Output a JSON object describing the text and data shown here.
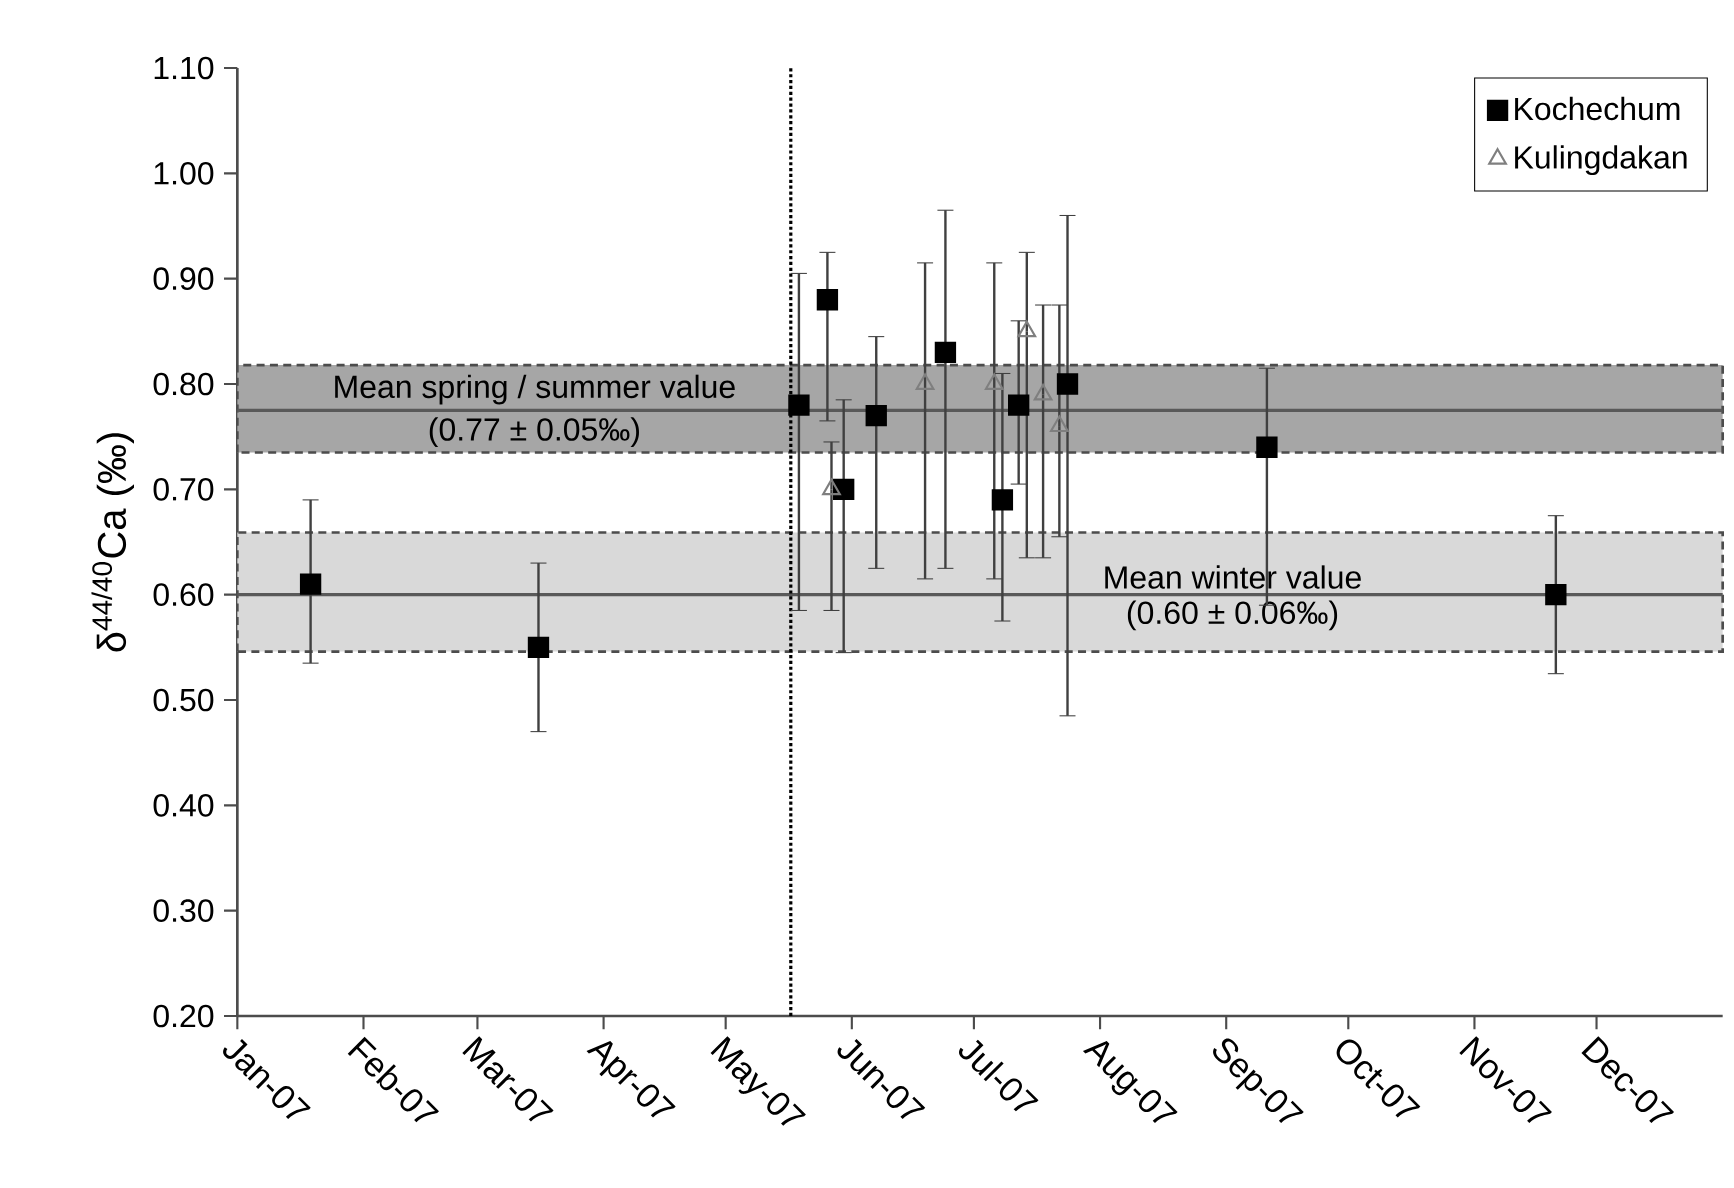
{
  "chart_data": {
    "type": "scatter",
    "ylabel": "δ$^{44/40}$Ca (‰)",
    "xlim": [
      "2007-01-01",
      "2008-01-01"
    ],
    "xticks": [
      {
        "value": "2007-01-01",
        "label": "Jan-07"
      },
      {
        "value": "2007-02-01",
        "label": "Feb-07"
      },
      {
        "value": "2007-03-01",
        "label": "Mar-07"
      },
      {
        "value": "2007-04-01",
        "label": "Apr-07"
      },
      {
        "value": "2007-05-01",
        "label": "May-07"
      },
      {
        "value": "2007-06-01",
        "label": "Jun-07"
      },
      {
        "value": "2007-07-01",
        "label": "Jul-07"
      },
      {
        "value": "2007-08-01",
        "label": "Aug-07"
      },
      {
        "value": "2007-09-01",
        "label": "Sep-07"
      },
      {
        "value": "2007-10-01",
        "label": "Oct-07"
      },
      {
        "value": "2007-11-01",
        "label": "Nov-07"
      },
      {
        "value": "2007-12-01",
        "label": "Dec-07"
      }
    ],
    "ylim": [
      0.2,
      1.1
    ],
    "yticks": [
      {
        "value": 0.2,
        "label": "0.20"
      },
      {
        "value": 0.3,
        "label": "0.30"
      },
      {
        "value": 0.4,
        "label": "0.40"
      },
      {
        "value": 0.5,
        "label": "0.50"
      },
      {
        "value": 0.6,
        "label": "0.60"
      },
      {
        "value": 0.7,
        "label": "0.70"
      },
      {
        "value": 0.8,
        "label": "0.80"
      },
      {
        "value": 0.9,
        "label": "0.90"
      },
      {
        "value": 1.0,
        "label": "1.00"
      },
      {
        "value": 1.1,
        "label": "1.10"
      }
    ],
    "series": [
      {
        "name": "Kochechum",
        "color": "#000000",
        "marker": "square",
        "x": [
          "2007-01-19",
          "2007-03-16",
          "2007-05-19",
          "2007-05-26",
          "2007-05-30",
          "2007-06-07",
          "2007-06-24",
          "2007-07-08",
          "2007-07-12",
          "2007-07-24",
          "2007-09-11",
          "2007-11-21"
        ],
        "values": [
          0.61,
          0.55,
          0.78,
          0.88,
          0.7,
          0.77,
          0.83,
          0.69,
          0.78,
          0.8,
          0.74,
          0.6
        ],
        "errors": [
          [
            0.535,
            0.69
          ],
          [
            0.47,
            0.63
          ],
          [
            0.585,
            0.905
          ],
          [
            0.765,
            0.925
          ],
          [
            0.545,
            0.785
          ],
          [
            0.625,
            0.845
          ],
          [
            0.625,
            0.965
          ],
          [
            0.575,
            0.81
          ],
          [
            0.705,
            0.86
          ],
          [
            0.485,
            0.96
          ],
          [
            0.59,
            0.815
          ],
          [
            0.525,
            0.675
          ]
        ]
      },
      {
        "name": "Kulingdakan",
        "color": "#7f7f7f",
        "marker": "triangle",
        "x": [
          "2007-05-27",
          "2007-06-19",
          "2007-07-06",
          "2007-07-14",
          "2007-07-18",
          "2007-07-22"
        ],
        "values": [
          0.7,
          0.8,
          0.8,
          0.85,
          0.79,
          0.76
        ],
        "errors": [
          [
            0.585,
            0.745
          ],
          [
            0.615,
            0.915
          ],
          [
            0.615,
            0.915
          ],
          [
            0.635,
            0.925
          ],
          [
            0.635,
            0.875
          ],
          [
            0.655,
            0.875
          ]
        ]
      }
    ],
    "ref_lines": [
      {
        "axis": "y",
        "value": 0.775,
        "label": "Mean spring / summer value",
        "color": "#595959",
        "line_style": "solid"
      },
      {
        "axis": "y",
        "value": 0.6,
        "label": "Mean winter value",
        "color": "#595959",
        "line_style": "solid"
      },
      {
        "axis": "x",
        "value": "2007-05-17",
        "color": "#000000",
        "line_style": "dotted"
      }
    ],
    "bands": [
      {
        "axis": "y",
        "from": 0.735,
        "to": 0.818,
        "label": "(0.77 ± 0.05‰)",
        "color": "#a6a6a6"
      },
      {
        "axis": "y",
        "from": 0.546,
        "to": 0.659,
        "label": "(0.60 ± 0.06‰)",
        "color": "#d9d9d9"
      }
    ],
    "grid": false,
    "legend": "top right"
  }
}
